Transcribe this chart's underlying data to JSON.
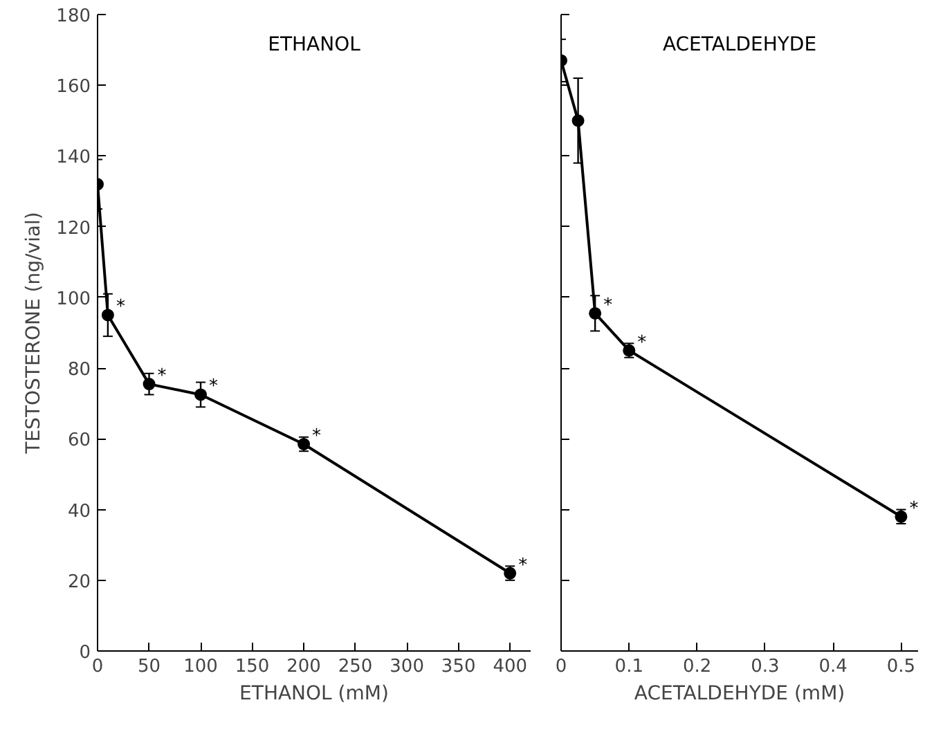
{
  "chart_data": [
    {
      "type": "line",
      "title": "ETHANOL",
      "xlabel": "ETHANOL (mM)",
      "ylabel": "TESTOSTERONE (ng/vial)",
      "x": [
        0,
        10,
        50,
        100,
        200,
        400
      ],
      "values": [
        132,
        95,
        75.5,
        72.5,
        58.5,
        22
      ],
      "errors": [
        7,
        6,
        3,
        3.5,
        2,
        2
      ],
      "color": "#000000",
      "marker": "circle",
      "line_style": "solid",
      "grid": false,
      "xlim": [
        0,
        420
      ],
      "xticks": [
        0,
        50,
        100,
        150,
        200,
        250,
        300,
        350,
        400
      ],
      "ylim": [
        0,
        180
      ],
      "yticks": [
        0,
        20,
        40,
        60,
        80,
        100,
        120,
        140,
        160,
        180
      ],
      "annotations": [
        {
          "text": "*",
          "x": 10,
          "y": 95
        },
        {
          "text": "*",
          "x": 50,
          "y": 75.5
        },
        {
          "text": "*",
          "x": 100,
          "y": 72.5
        },
        {
          "text": "*",
          "x": 200,
          "y": 58.5
        },
        {
          "text": "*",
          "x": 400,
          "y": 22
        }
      ]
    },
    {
      "type": "line",
      "title": "ACETALDEHYDE",
      "xlabel": "ACETALDEHYDE (mM)",
      "x": [
        0,
        0.025,
        0.05,
        0.1,
        0.5
      ],
      "values": [
        167,
        150,
        95.5,
        85,
        38
      ],
      "errors": [
        6,
        12,
        5,
        2,
        2
      ],
      "color": "#000000",
      "marker": "circle",
      "line_style": "solid",
      "grid": false,
      "tick_labels": "x",
      "xlim": [
        0,
        0.525
      ],
      "xticks": [
        0,
        0.1,
        0.2,
        0.3,
        0.4,
        0.5
      ],
      "ylim": [
        0,
        180
      ],
      "yticks": [
        0,
        20,
        40,
        60,
        80,
        100,
        120,
        140,
        160,
        180
      ],
      "annotations": [
        {
          "text": "*",
          "x": 0.05,
          "y": 95.5
        },
        {
          "text": "*",
          "x": 0.1,
          "y": 85
        },
        {
          "text": "*",
          "x": 0.5,
          "y": 38
        }
      ]
    }
  ]
}
